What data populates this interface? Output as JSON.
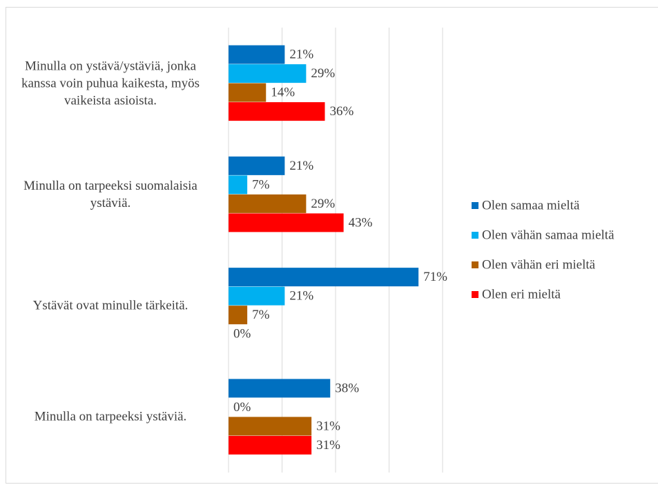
{
  "chart_data": {
    "type": "hbar",
    "categories": [
      "Minulla on ystävä/ystäviä, jonka kanssa voin puhua kaikesta, myös vaikeista asioista.",
      "Minulla on tarpeeksi suomalaisia ystäviä.",
      "Ystävät ovat minulle tärkeitä.",
      "Minulla on tarpeeksi ystäviä."
    ],
    "series": [
      {
        "name": "Olen samaa mieltä",
        "color": "#0070c0",
        "values": [
          21,
          21,
          71,
          38
        ],
        "value_labels": [
          "21%",
          "21%",
          "71%",
          "38%"
        ]
      },
      {
        "name": "Olen vähän samaa mieltä",
        "color": "#00b0f0",
        "values": [
          29,
          7,
          21,
          0
        ],
        "value_labels": [
          "29%",
          "7%",
          "21%",
          "0%"
        ]
      },
      {
        "name": "Olen vähän eri mieltä",
        "color": "#b05f00",
        "values": [
          14,
          29,
          7,
          31
        ],
        "value_labels": [
          "14%",
          "29%",
          "7%",
          "31%"
        ]
      },
      {
        "name": "Olen eri mieltä",
        "color": "#ff0000",
        "values": [
          36,
          43,
          0,
          31
        ],
        "value_labels": [
          "36%",
          "43%",
          "0%",
          "31%"
        ]
      }
    ],
    "xlim": [
      0,
      80
    ],
    "xticks": [
      0,
      20,
      40,
      60,
      80
    ],
    "grid": true,
    "tick_labels": false,
    "legend": "right"
  }
}
